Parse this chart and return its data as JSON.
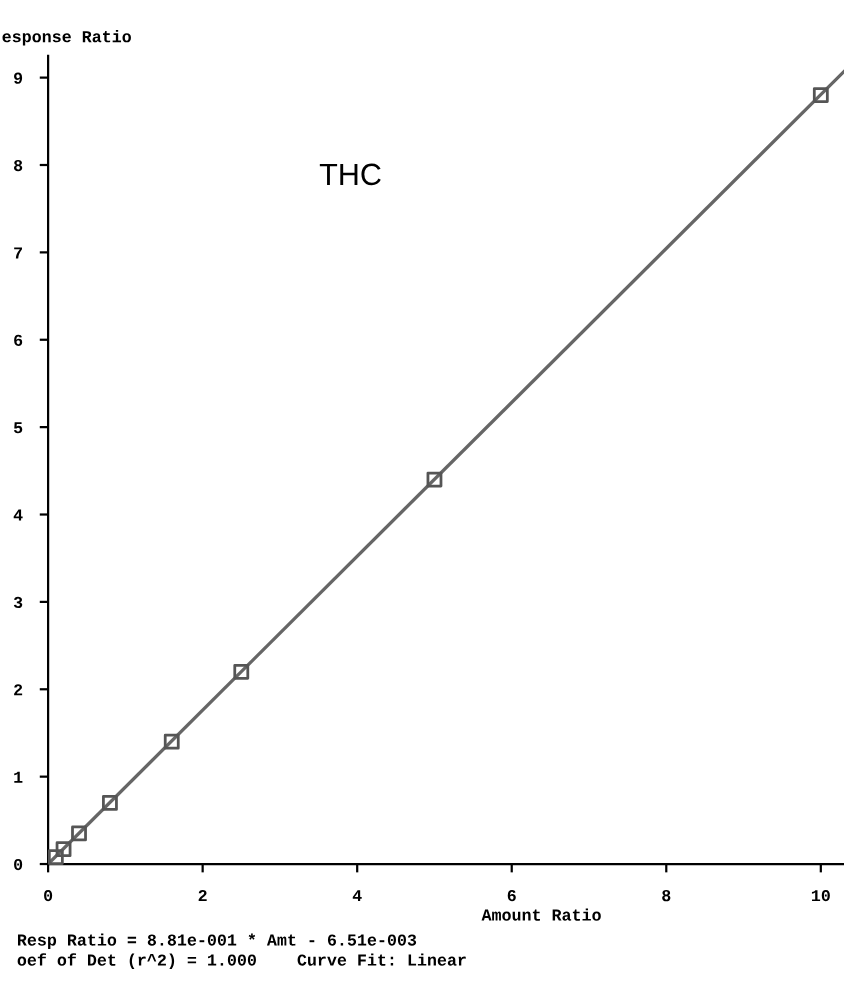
{
  "chart_data": {
    "type": "scatter",
    "title": "THC",
    "xlabel": "Amount Ratio",
    "ylabel": "esponse Ratio",
    "series": [
      {
        "marker": "square",
        "color": "#555555",
        "x": [
          0.1,
          0.2,
          0.4,
          0.8,
          1.6,
          2.5,
          5,
          10
        ],
        "values": [
          0.08,
          0.17,
          0.35,
          0.7,
          1.4,
          2.2,
          4.4,
          8.8
        ]
      },
      {
        "type": "line",
        "color": "#666666",
        "x": [
          0,
          10.3
        ],
        "values": [
          0,
          9.07
        ]
      }
    ],
    "xlim": [
      0,
      10.3
    ],
    "ylim": [
      0,
      9.25
    ],
    "xticks": [
      0,
      2,
      4,
      6,
      8,
      10
    ],
    "yticks": [
      0,
      1,
      2,
      3,
      4,
      5,
      6,
      7,
      8,
      9
    ],
    "grid": false,
    "legend": false,
    "annotations": [
      "Resp Ratio = 8.81e-001 * Amt - 6.51e-003",
      "oef of Det (r^2) = 1.000    Curve Fit: Linear"
    ]
  }
}
